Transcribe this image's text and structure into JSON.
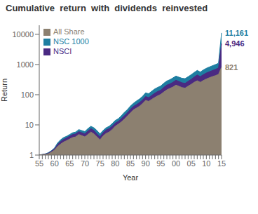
{
  "chart_data": {
    "type": "area",
    "title": "Cumulative  return  with  dividends  reinvested",
    "x_label": "Year",
    "y_label": "Return",
    "categories": [
      "55",
      null,
      null,
      null,
      null,
      "60",
      null,
      null,
      null,
      null,
      "65",
      null,
      null,
      null,
      null,
      "70",
      null,
      null,
      null,
      null,
      "75",
      null,
      null,
      null,
      null,
      "80",
      null,
      null,
      null,
      null,
      "85",
      null,
      null,
      null,
      null,
      "90",
      null,
      null,
      null,
      null,
      "95",
      null,
      null,
      null,
      null,
      "00",
      null,
      null,
      null,
      null,
      "05",
      null,
      null,
      null,
      null,
      "10",
      null,
      null,
      null,
      null,
      "15"
    ],
    "series": [
      {
        "name": "NSC 1000",
        "color": "#1e7ea1",
        "values": [
          1.0,
          1.05,
          1.1,
          1.2,
          1.4,
          1.7,
          2.5,
          3.2,
          3.8,
          4.2,
          4.8,
          5.5,
          5.8,
          7.0,
          6.5,
          6.0,
          7.5,
          9.0,
          8.0,
          6.5,
          5.0,
          6.5,
          8.0,
          9.0,
          11.0,
          14.0,
          16.0,
          20.0,
          26.0,
          32.0,
          42.0,
          52.0,
          62.0,
          72.0,
          88.0,
          115.0,
          108.0,
          130.0,
          155.0,
          175.0,
          195.0,
          240.0,
          285.0,
          315.0,
          360.0,
          415.0,
          380.0,
          350.0,
          340.0,
          395.0,
          460.0,
          545.0,
          640.0,
          565.0,
          660.0,
          750.0,
          830.0,
          910.0,
          1000.0,
          1100.0,
          11161.0
        ]
      },
      {
        "name": "NSCI",
        "color": "#4a2a82",
        "values": [
          1.0,
          1.04,
          1.08,
          1.15,
          1.35,
          1.6,
          2.2,
          2.8,
          3.3,
          3.7,
          4.2,
          4.8,
          5.0,
          6.0,
          5.5,
          5.0,
          6.2,
          7.5,
          6.5,
          5.0,
          4.0,
          5.5,
          6.8,
          7.5,
          9.0,
          11.5,
          13.0,
          16.0,
          20.0,
          25.0,
          33.0,
          41.0,
          47.0,
          55.0,
          67.0,
          87.0,
          80.0,
          95.0,
          112.0,
          128.0,
          142.0,
          175.0,
          208.0,
          228.0,
          258.0,
          302.0,
          275.0,
          248.0,
          238.0,
          278.0,
          322.0,
          385.0,
          450.0,
          398.0,
          462.0,
          525.0,
          578.0,
          632.0,
          695.0,
          770.0,
          4946.0
        ]
      },
      {
        "name": "All Share",
        "color": "#8c8070",
        "values": [
          1.0,
          1.03,
          1.06,
          1.1,
          1.25,
          1.45,
          1.9,
          2.3,
          2.7,
          3.0,
          3.4,
          3.8,
          4.0,
          4.8,
          4.4,
          4.0,
          4.8,
          5.8,
          5.0,
          4.0,
          3.2,
          4.3,
          5.2,
          5.8,
          7.0,
          9.0,
          10.5,
          12.5,
          15.5,
          19.5,
          25.0,
          31.5,
          36.0,
          41.5,
          51.0,
          65.0,
          60.0,
          70.0,
          81.0,
          92.0,
          103.0,
          123.0,
          145.0,
          162.0,
          180.0,
          208.0,
          190.0,
          172.0,
          165.0,
          192.0,
          220.0,
          258.0,
          290.0,
          258.0,
          295.0,
          332.0,
          365.0,
          398.0,
          430.0,
          470.0,
          821.0
        ]
      }
    ],
    "ylim": [
      1,
      20000
    ],
    "yticks": [
      1,
      10,
      100,
      1000,
      10000
    ],
    "log": "y",
    "grid": false,
    "legend": "upper left",
    "annotations": [
      {
        "text": "11,161",
        "y": 11161,
        "series": "NSC 1000"
      },
      {
        "text": "4,946",
        "y": 4946,
        "series": "NSCI"
      },
      {
        "text": "821",
        "y": 821,
        "series": "All Share"
      }
    ]
  }
}
